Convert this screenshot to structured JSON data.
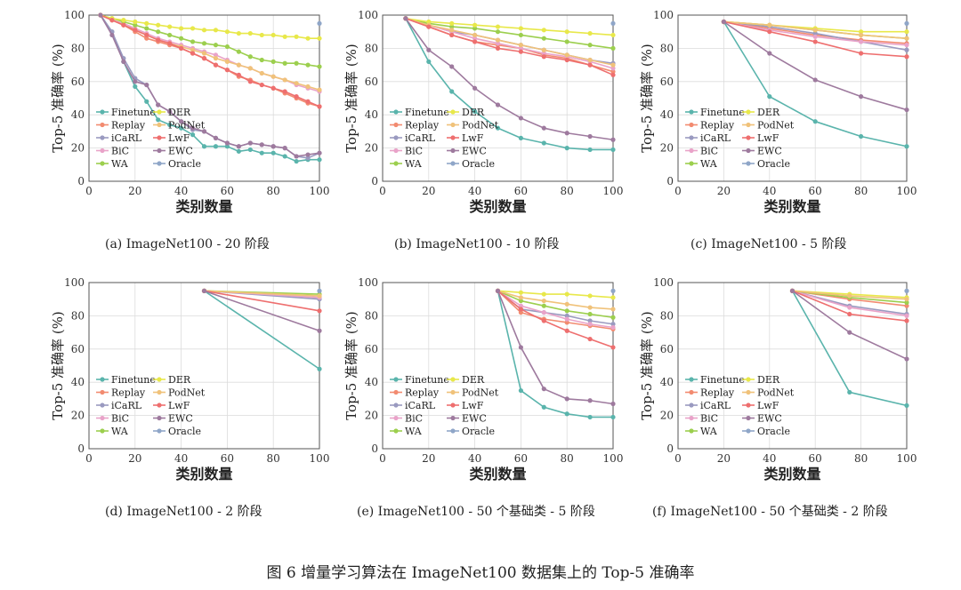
{
  "figure_caption": "图 6    增量学习算法在 ImageNet100 数据集上的 Top-5 准确率",
  "series_styles": [
    {
      "name": "Finetune",
      "color": "#5ab4ac",
      "marker": "dot"
    },
    {
      "name": "Replay",
      "color": "#f28b70",
      "marker": "dot"
    },
    {
      "name": "iCaRL",
      "color": "#9a9ac0",
      "marker": "dot"
    },
    {
      "name": "BiC",
      "color": "#e9a3c9",
      "marker": "dot"
    },
    {
      "name": "WA",
      "color": "#9ccf4e",
      "marker": "dot"
    },
    {
      "name": "DER",
      "color": "#e8e84a",
      "marker": "dot"
    },
    {
      "name": "PodNet",
      "color": "#f0c27a",
      "marker": "dot"
    },
    {
      "name": "LwF",
      "color": "#ee6f6f",
      "marker": "dot"
    },
    {
      "name": "EWC",
      "color": "#9e7a9e",
      "marker": "dot"
    },
    {
      "name": "Oracle",
      "color": "#8fa6c8",
      "marker": "dot"
    }
  ],
  "chart_data": [
    {
      "type": "line",
      "caption": "(a)  ImageNet100 - 20 阶段",
      "xlabel": "类别数量",
      "ylabel": "Top-5 准确率 (%)",
      "xlim": [
        0,
        100
      ],
      "ylim": [
        0,
        100
      ],
      "xticks": [
        0,
        20,
        40,
        60,
        80,
        100
      ],
      "yticks": [
        0,
        20,
        40,
        60,
        80,
        100
      ],
      "legend_position": "lower-left",
      "x": [
        5,
        10,
        15,
        20,
        25,
        30,
        35,
        40,
        45,
        50,
        55,
        60,
        65,
        70,
        75,
        80,
        85,
        90,
        95,
        100
      ],
      "series": [
        {
          "name": "Finetune",
          "values": [
            100,
            90,
            72,
            57,
            48,
            37,
            34,
            32,
            28,
            21,
            21,
            21,
            18,
            19,
            17,
            17,
            15,
            12,
            13,
            13
          ]
        },
        {
          "name": "Replay",
          "values": [
            100,
            97,
            94,
            90,
            86,
            84,
            82,
            80,
            77,
            74,
            70,
            67,
            63,
            61,
            58,
            56,
            53,
            50,
            47,
            45
          ]
        },
        {
          "name": "iCaRL",
          "values": [
            100,
            90,
            74,
            62,
            58,
            46,
            42,
            36,
            31,
            30,
            26,
            23,
            21,
            23,
            22,
            21,
            20,
            15,
            14,
            17
          ]
        },
        {
          "name": "BiC",
          "values": [
            100,
            97,
            95,
            92,
            89,
            86,
            84,
            82,
            80,
            78,
            76,
            73,
            70,
            68,
            65,
            63,
            61,
            58,
            56,
            54
          ]
        },
        {
          "name": "WA",
          "values": [
            100,
            98,
            96,
            94,
            92,
            90,
            88,
            86,
            84,
            83,
            82,
            81,
            78,
            75,
            73,
            72,
            71,
            71,
            70,
            69
          ]
        },
        {
          "name": "DER",
          "values": [
            100,
            98,
            97,
            96,
            95,
            94,
            93,
            92,
            92,
            91,
            91,
            90,
            89,
            89,
            88,
            88,
            87,
            87,
            86,
            86
          ]
        },
        {
          "name": "PodNet",
          "values": [
            100,
            97,
            94,
            91,
            88,
            85,
            83,
            81,
            79,
            77,
            74,
            72,
            70,
            68,
            65,
            63,
            61,
            59,
            57,
            55
          ]
        },
        {
          "name": "LwF",
          "values": [
            100,
            97,
            94,
            91,
            88,
            85,
            83,
            80,
            77,
            74,
            70,
            67,
            64,
            60,
            58,
            56,
            54,
            51,
            48,
            45
          ]
        },
        {
          "name": "EWC",
          "values": [
            100,
            88,
            72,
            60,
            58,
            46,
            42,
            36,
            32,
            30,
            26,
            23,
            21,
            23,
            22,
            21,
            20,
            15,
            16,
            17
          ]
        },
        {
          "name": "Oracle",
          "values": [
            null,
            null,
            null,
            null,
            null,
            null,
            null,
            null,
            null,
            null,
            null,
            null,
            null,
            null,
            null,
            null,
            null,
            null,
            null,
            95
          ]
        }
      ]
    },
    {
      "type": "line",
      "caption": "(b)  ImageNet100 - 10 阶段",
      "xlabel": "类别数量",
      "ylabel": "Top-5 准确率 (%)",
      "xlim": [
        0,
        100
      ],
      "ylim": [
        0,
        100
      ],
      "xticks": [
        0,
        20,
        40,
        60,
        80,
        100
      ],
      "yticks": [
        0,
        20,
        40,
        60,
        80,
        100
      ],
      "legend_position": "lower-left",
      "x": [
        10,
        20,
        30,
        40,
        50,
        60,
        70,
        80,
        90,
        100
      ],
      "series": [
        {
          "name": "Finetune",
          "values": [
            98,
            72,
            54,
            42,
            32,
            26,
            23,
            20,
            19,
            19
          ]
        },
        {
          "name": "Replay",
          "values": [
            98,
            93,
            88,
            84,
            82,
            80,
            76,
            74,
            70,
            66
          ]
        },
        {
          "name": "iCaRL",
          "values": [
            98,
            94,
            90,
            88,
            85,
            82,
            79,
            76,
            73,
            71
          ]
        },
        {
          "name": "BiC",
          "values": [
            98,
            94,
            90,
            86,
            83,
            80,
            77,
            75,
            72,
            68
          ]
        },
        {
          "name": "WA",
          "values": [
            98,
            95,
            93,
            92,
            90,
            88,
            86,
            84,
            82,
            80
          ]
        },
        {
          "name": "DER",
          "values": [
            98,
            96,
            95,
            94,
            93,
            92,
            91,
            90,
            89,
            88
          ]
        },
        {
          "name": "PodNet",
          "values": [
            98,
            94,
            91,
            88,
            85,
            82,
            79,
            76,
            73,
            70
          ]
        },
        {
          "name": "LwF",
          "values": [
            98,
            93,
            88,
            84,
            80,
            78,
            75,
            73,
            70,
            64
          ]
        },
        {
          "name": "EWC",
          "values": [
            98,
            79,
            69,
            56,
            46,
            38,
            32,
            29,
            27,
            25
          ]
        },
        {
          "name": "Oracle",
          "values": [
            null,
            null,
            null,
            null,
            null,
            null,
            null,
            null,
            null,
            95
          ]
        }
      ]
    },
    {
      "type": "line",
      "caption": "(c)  ImageNet100 - 5 阶段",
      "xlabel": "类别数量",
      "ylabel": "Top-5 准确率 (%)",
      "xlim": [
        0,
        100
      ],
      "ylim": [
        0,
        100
      ],
      "xticks": [
        0,
        20,
        40,
        60,
        80,
        100
      ],
      "yticks": [
        0,
        20,
        40,
        60,
        80,
        100
      ],
      "legend_position": "lower-left",
      "x": [
        20,
        40,
        60,
        80,
        100
      ],
      "series": [
        {
          "name": "Finetune",
          "values": [
            96,
            51,
            36,
            27,
            21
          ]
        },
        {
          "name": "Replay",
          "values": [
            96,
            92,
            88,
            85,
            83
          ]
        },
        {
          "name": "iCaRL",
          "values": [
            96,
            93,
            89,
            84,
            79
          ]
        },
        {
          "name": "BiC",
          "values": [
            96,
            91,
            87,
            84,
            82
          ]
        },
        {
          "name": "WA",
          "values": [
            96,
            94,
            91,
            88,
            86
          ]
        },
        {
          "name": "DER",
          "values": [
            96,
            94,
            92,
            90,
            90
          ]
        },
        {
          "name": "PodNet",
          "values": [
            96,
            94,
            91,
            88,
            86
          ]
        },
        {
          "name": "LwF",
          "values": [
            96,
            90,
            84,
            77,
            75
          ]
        },
        {
          "name": "EWC",
          "values": [
            96,
            77,
            61,
            51,
            43
          ]
        },
        {
          "name": "Oracle",
          "values": [
            null,
            null,
            null,
            null,
            95
          ]
        }
      ]
    },
    {
      "type": "line",
      "caption": "(d)  ImageNet100 - 2 阶段",
      "xlabel": "类别数量",
      "ylabel": "Top-5 准确率 (%)",
      "xlim": [
        0,
        100
      ],
      "ylim": [
        0,
        100
      ],
      "xticks": [
        0,
        20,
        40,
        60,
        80,
        100
      ],
      "yticks": [
        0,
        20,
        40,
        60,
        80,
        100
      ],
      "legend_position": "lower-left",
      "x": [
        50,
        100
      ],
      "series": [
        {
          "name": "Finetune",
          "values": [
            95,
            48
          ]
        },
        {
          "name": "Replay",
          "values": [
            95,
            91
          ]
        },
        {
          "name": "iCaRL",
          "values": [
            95,
            90
          ]
        },
        {
          "name": "BiC",
          "values": [
            95,
            91
          ]
        },
        {
          "name": "WA",
          "values": [
            95,
            93
          ]
        },
        {
          "name": "DER",
          "values": [
            95,
            92
          ]
        },
        {
          "name": "PodNet",
          "values": [
            95,
            92
          ]
        },
        {
          "name": "LwF",
          "values": [
            95,
            83
          ]
        },
        {
          "name": "EWC",
          "values": [
            95,
            71
          ]
        },
        {
          "name": "Oracle",
          "values": [
            null,
            95
          ]
        }
      ]
    },
    {
      "type": "line",
      "caption": "(e)  ImageNet100 - 50 个基础类 - 5 阶段",
      "xlabel": "类别数量",
      "ylabel": "Top-5 准确率 (%)",
      "xlim": [
        0,
        100
      ],
      "ylim": [
        0,
        100
      ],
      "xticks": [
        0,
        20,
        40,
        60,
        80,
        100
      ],
      "yticks": [
        0,
        20,
        40,
        60,
        80,
        100
      ],
      "legend_position": "lower-left",
      "x": [
        50,
        60,
        70,
        80,
        90,
        100
      ],
      "series": [
        {
          "name": "Finetune",
          "values": [
            95,
            35,
            25,
            21,
            19,
            19
          ]
        },
        {
          "name": "Replay",
          "values": [
            95,
            82,
            78,
            76,
            74,
            72
          ]
        },
        {
          "name": "iCaRL",
          "values": [
            95,
            84,
            82,
            80,
            77,
            75
          ]
        },
        {
          "name": "BiC",
          "values": [
            95,
            86,
            82,
            78,
            75,
            73
          ]
        },
        {
          "name": "WA",
          "values": [
            95,
            89,
            86,
            83,
            81,
            79
          ]
        },
        {
          "name": "DER",
          "values": [
            95,
            94,
            93,
            93,
            92,
            91
          ]
        },
        {
          "name": "PodNet",
          "values": [
            95,
            91,
            89,
            87,
            85,
            84
          ]
        },
        {
          "name": "LwF",
          "values": [
            95,
            84,
            77,
            71,
            66,
            61
          ]
        },
        {
          "name": "EWC",
          "values": [
            95,
            61,
            36,
            30,
            29,
            27
          ]
        },
        {
          "name": "Oracle",
          "values": [
            null,
            null,
            null,
            null,
            null,
            95
          ]
        }
      ]
    },
    {
      "type": "line",
      "caption": "(f)  ImageNet100 - 50 个基础类 - 2 阶段",
      "xlabel": "类别数量",
      "ylabel": "Top-5 准确率 (%)",
      "xlim": [
        0,
        100
      ],
      "ylim": [
        0,
        100
      ],
      "xticks": [
        0,
        20,
        40,
        60,
        80,
        100
      ],
      "yticks": [
        0,
        20,
        40,
        60,
        80,
        100
      ],
      "legend_position": "lower-left",
      "x": [
        50,
        75,
        100
      ],
      "series": [
        {
          "name": "Finetune",
          "values": [
            95,
            34,
            26
          ]
        },
        {
          "name": "Replay",
          "values": [
            95,
            90,
            86
          ]
        },
        {
          "name": "iCaRL",
          "values": [
            95,
            86,
            81
          ]
        },
        {
          "name": "BiC",
          "values": [
            95,
            85,
            80
          ]
        },
        {
          "name": "WA",
          "values": [
            95,
            91,
            88
          ]
        },
        {
          "name": "DER",
          "values": [
            95,
            93,
            91
          ]
        },
        {
          "name": "PodNet",
          "values": [
            95,
            92,
            90
          ]
        },
        {
          "name": "LwF",
          "values": [
            95,
            81,
            77
          ]
        },
        {
          "name": "EWC",
          "values": [
            95,
            70,
            54
          ]
        },
        {
          "name": "Oracle",
          "values": [
            null,
            null,
            95
          ]
        }
      ]
    }
  ]
}
